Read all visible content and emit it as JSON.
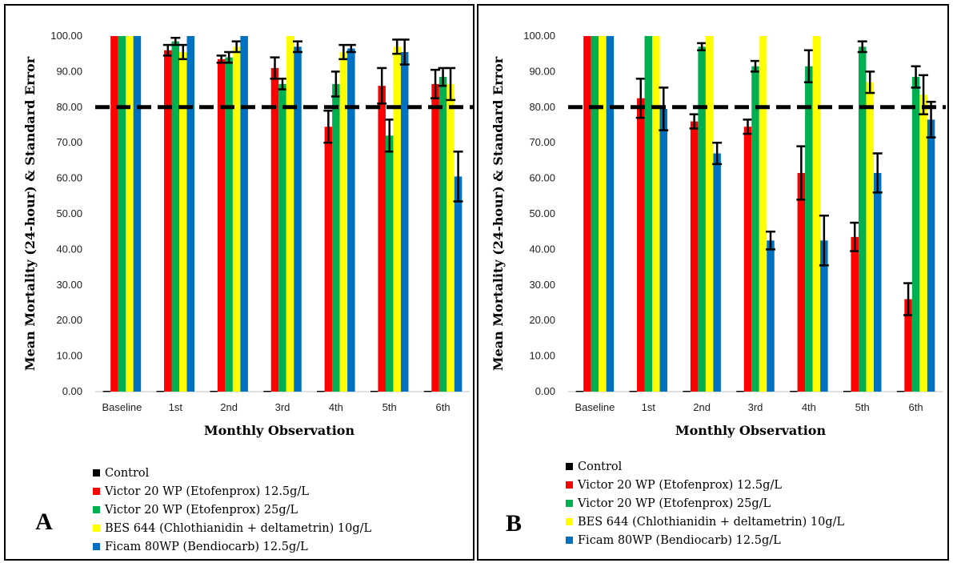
{
  "colors": {
    "Control": "#000000",
    "Victor 20 WP (Etofenprox) 12.5g/L": "#ff0000",
    "Victor 20 WP (Etofenprox) 25g/L": "#00b050",
    "BES 644 (Chlothianidin + deltametrin) 10g/L": "#ffff00",
    "Ficam 80WP (Bendiocarb) 12.5g/L": "#0070c0"
  },
  "chart_data": [
    {
      "panel_label": "A",
      "type": "bar",
      "xlabel": "Monthly Observation",
      "ylabel": "Mean Mortality (24-hour) & Standard Error",
      "ylim": [
        0,
        100
      ],
      "yticks": [
        "0.00",
        "10.00",
        "20.00",
        "30.00",
        "40.00",
        "50.00",
        "60.00",
        "70.00",
        "80.00",
        "90.00",
        "100.00"
      ],
      "threshold": 80,
      "categories": [
        "Baseline",
        "1st",
        "2nd",
        "3rd",
        "4th",
        "5th",
        "6th"
      ],
      "series": [
        {
          "name": "Control",
          "values": [
            0,
            0,
            0,
            0,
            0,
            0,
            0
          ],
          "errors": [
            0,
            0,
            0,
            0,
            0,
            0,
            0
          ]
        },
        {
          "name": "Victor 20 WP (Etofenprox) 12.5g/L",
          "values": [
            100,
            96,
            93.5,
            91,
            74.5,
            86,
            86.5
          ],
          "errors": [
            0,
            1.5,
            1,
            3,
            4.5,
            5,
            4
          ]
        },
        {
          "name": "Victor 20 WP (Etofenprox) 25g/L",
          "values": [
            100,
            98.5,
            94,
            86.5,
            86.5,
            72,
            88.5
          ],
          "errors": [
            0,
            1,
            1.5,
            1.5,
            3.5,
            4.5,
            2.5
          ]
        },
        {
          "name": "BES 644 (Chlothianidin + deltametrin) 10g/L",
          "values": [
            100,
            95.5,
            97,
            100,
            95.5,
            97,
            86.5
          ],
          "errors": [
            0,
            2,
            1.5,
            0,
            2,
            2,
            4.5
          ]
        },
        {
          "name": "Ficam 80WP (Bendiocarb) 12.5g/L",
          "values": [
            100,
            100,
            100,
            97,
            96.5,
            95.5,
            60.5
          ],
          "errors": [
            0,
            0,
            0,
            1.5,
            1,
            3.5,
            7
          ]
        }
      ]
    },
    {
      "panel_label": "B",
      "type": "bar",
      "xlabel": "Monthly Observation",
      "ylabel": "Mean Mortality (24-hour) & Standard Error",
      "ylim": [
        0,
        100
      ],
      "yticks": [
        "0.00",
        "10.00",
        "20.00",
        "30.00",
        "40.00",
        "50.00",
        "60.00",
        "70.00",
        "80.00",
        "90.00",
        "100.00"
      ],
      "threshold": 80,
      "categories": [
        "Baseline",
        "1st",
        "2nd",
        "3rd",
        "4th",
        "5th",
        "6th"
      ],
      "series": [
        {
          "name": "Control",
          "values": [
            0,
            0,
            0,
            0,
            0,
            0,
            0
          ],
          "errors": [
            0,
            0,
            0,
            0,
            0,
            0,
            0
          ]
        },
        {
          "name": "Victor 20 WP (Etofenprox) 12.5g/L",
          "values": [
            100,
            82.5,
            76,
            74.5,
            61.5,
            43.5,
            26
          ],
          "errors": [
            0,
            5.5,
            2,
            2,
            7.5,
            4,
            4.5
          ]
        },
        {
          "name": "Victor 20 WP (Etofenprox) 25g/L",
          "values": [
            100,
            100,
            97,
            91.5,
            91.5,
            97,
            88.5
          ],
          "errors": [
            0,
            0,
            1,
            1.5,
            4.5,
            1.5,
            3
          ]
        },
        {
          "name": "BES 644 (Chlothianidin + deltametrin) 10g/L",
          "values": [
            100,
            100,
            100,
            100,
            100,
            87,
            83.5
          ],
          "errors": [
            0,
            0,
            0,
            0,
            0,
            3,
            5.5
          ]
        },
        {
          "name": "Ficam 80WP (Bendiocarb) 12.5g/L",
          "values": [
            100,
            79.5,
            67,
            42.5,
            42.5,
            61.5,
            76.5
          ],
          "errors": [
            0,
            6,
            3,
            2.5,
            7,
            5.5,
            5
          ]
        }
      ]
    }
  ]
}
